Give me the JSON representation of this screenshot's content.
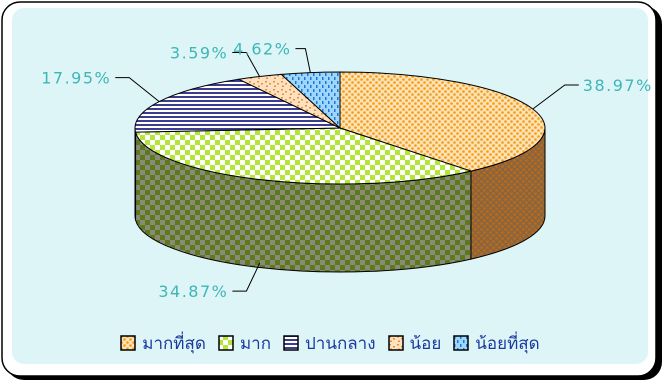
{
  "chart_data": {
    "type": "pie",
    "style": "3d",
    "slices": [
      {
        "label": "มากที่สุด",
        "value": 38.97,
        "display": "38.97%",
        "color": "#f7a830",
        "pattern": "dots-orange"
      },
      {
        "label": "มาก",
        "value": 34.87,
        "display": "34.87%",
        "color": "#a8dc2e",
        "pattern": "check-green"
      },
      {
        "label": "ปานกลาง",
        "value": 17.95,
        "display": "17.95%",
        "color": "#3c3c90",
        "pattern": "hstripe-navy"
      },
      {
        "label": "น้อย",
        "value": 3.59,
        "display": "3.59%",
        "color": "#f5a050",
        "pattern": "confetti-orange"
      },
      {
        "label": "น้อยที่สุด",
        "value": 4.62,
        "display": "4.62%",
        "color": "#4aa8f0",
        "pattern": "dash-blue"
      }
    ],
    "legend_position": "bottom"
  },
  "colors": {
    "plot_background": "#def5f7",
    "frame_background": "#ffffff",
    "frame_border": "#000000",
    "label_color": "#3fb6b6",
    "legend_text": "#1a3aa0"
  }
}
